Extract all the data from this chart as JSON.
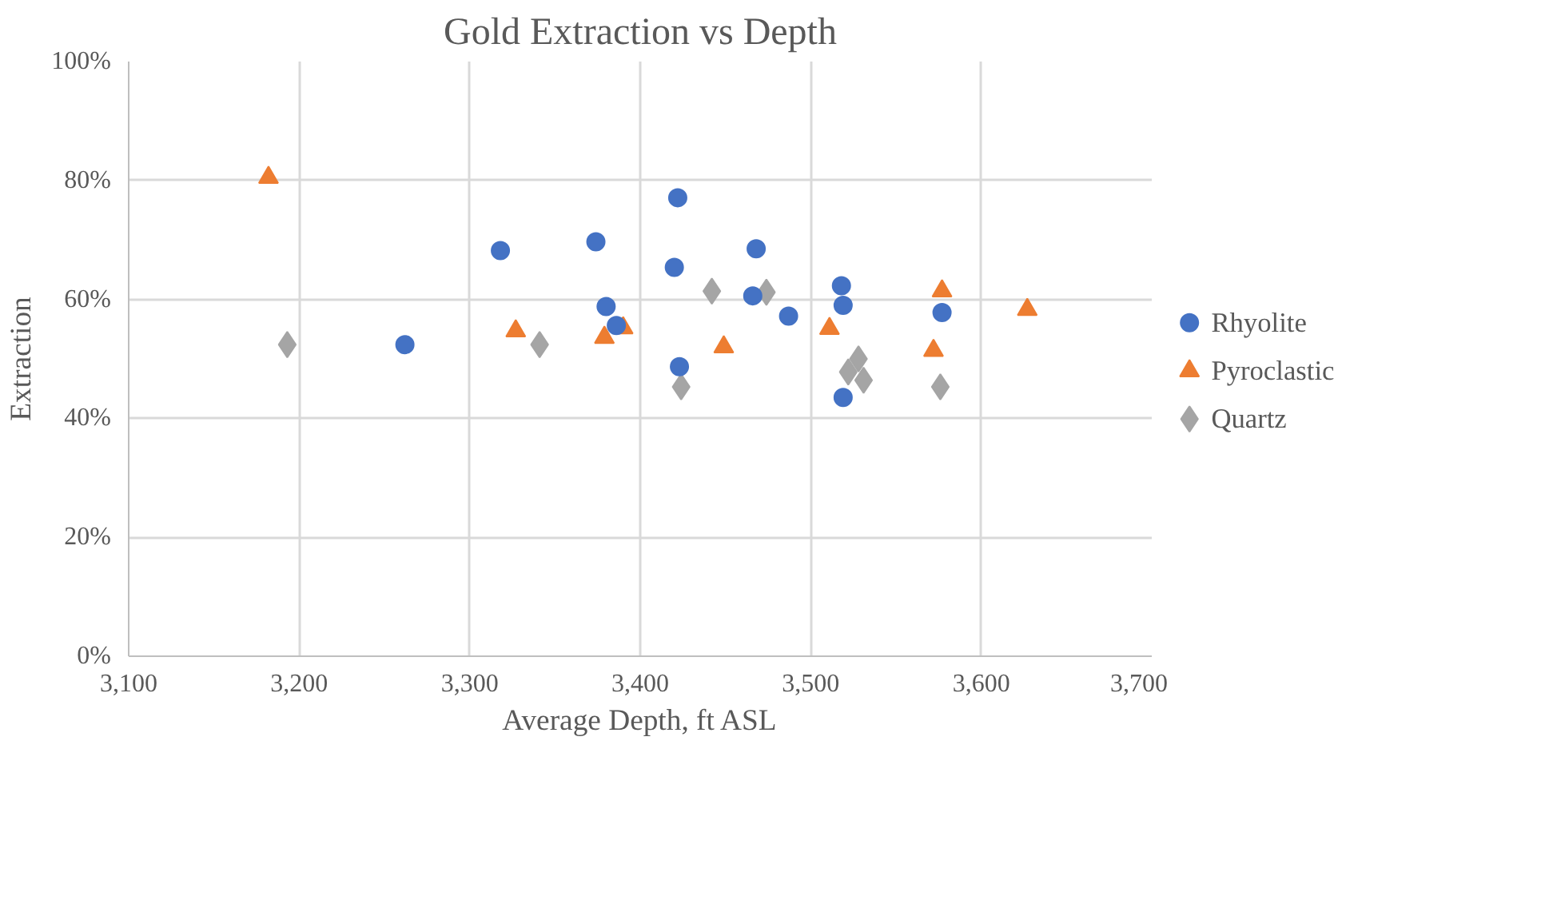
{
  "chart_data": {
    "type": "scatter",
    "title": "Gold Extraction vs Depth",
    "xlabel": "Average Depth, ft ASL",
    "ylabel": "Extraction",
    "xlim": [
      3100,
      3700
    ],
    "ylim": [
      0,
      100
    ],
    "xticks": [
      {
        "value": 3100,
        "label": "3,100"
      },
      {
        "value": 3200,
        "label": "3,200"
      },
      {
        "value": 3300,
        "label": "3,300"
      },
      {
        "value": 3400,
        "label": "3,400"
      },
      {
        "value": 3500,
        "label": "3,500"
      },
      {
        "value": 3600,
        "label": "3,600"
      },
      {
        "value": 3700,
        "label": "3,700"
      }
    ],
    "yticks": [
      {
        "value": 0,
        "label": "0%"
      },
      {
        "value": 20,
        "label": "20%"
      },
      {
        "value": 40,
        "label": "40%"
      },
      {
        "value": 60,
        "label": "60%"
      },
      {
        "value": 80,
        "label": "80%"
      },
      {
        "value": 100,
        "label": "100%"
      }
    ],
    "grid": true,
    "legend": "right",
    "series": [
      {
        "name": "Rhyolite",
        "color": "#4472c4",
        "marker": "circle",
        "x": [
          3318,
          3374,
          3380,
          3262,
          3386,
          3422,
          3420,
          3423,
          3468,
          3466,
          3487,
          3518,
          3519,
          3519,
          3577
        ],
        "values": [
          68.2,
          69.7,
          58.8,
          52.4,
          55.6,
          77.1,
          65.4,
          48.7,
          68.5,
          60.6,
          57.2,
          62.3,
          59.0,
          43.5,
          57.8
        ]
      },
      {
        "name": "Pyroclastic",
        "color": "#ed7d31",
        "marker": "triangle",
        "x": [
          3182,
          3327,
          3379,
          3390,
          3449,
          3511,
          3572,
          3577,
          3627
        ],
        "values": [
          80.5,
          54.7,
          53.6,
          55.2,
          52.0,
          55.1,
          51.4,
          61.4,
          58.3
        ]
      },
      {
        "name": "Quartz",
        "color": "#a5a5a5",
        "marker": "diamond",
        "x": [
          3193,
          3341,
          3424,
          3442,
          3474,
          3528,
          3522,
          3531,
          3576
        ],
        "values": [
          52.4,
          52.4,
          45.3,
          61.4,
          61.2,
          50.0,
          47.8,
          46.4,
          45.3
        ]
      }
    ]
  }
}
